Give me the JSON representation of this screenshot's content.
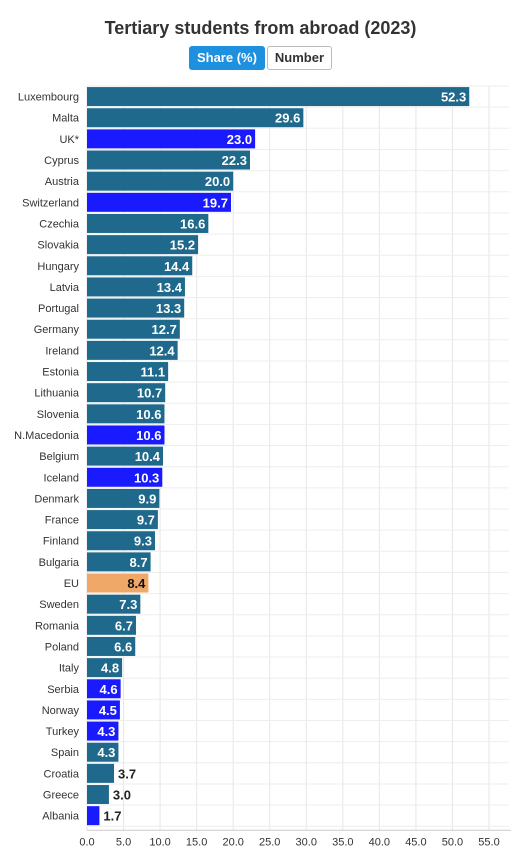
{
  "header": {
    "title": "Tertiary students from abroad (2023)",
    "toggle_share": "Share (%)",
    "toggle_number": "Number"
  },
  "colors": {
    "eu_member": "#1f6a8c",
    "non_eu": "#1a1aff",
    "eu_average": "#f0a868",
    "active_toggle": "#1e90e0"
  },
  "chart_data": {
    "type": "bar",
    "orientation": "horizontal",
    "title": "Tertiary students from abroad (2023)",
    "xlim": [
      0,
      55
    ],
    "xticks": [
      "0.0",
      "5.0",
      "10.0",
      "15.0",
      "20.0",
      "25.0",
      "30.0",
      "35.0",
      "40.0",
      "45.0",
      "50.0",
      "55.0"
    ],
    "grid": true,
    "categories": [
      "Luxembourg",
      "Malta",
      "UK*",
      "Cyprus",
      "Austria",
      "Switzerland",
      "Czechia",
      "Slovakia",
      "Hungary",
      "Latvia",
      "Portugal",
      "Germany",
      "Ireland",
      "Estonia",
      "Lithuania",
      "Slovenia",
      "N.Macedonia",
      "Belgium",
      "Iceland",
      "Denmark",
      "France",
      "Finland",
      "Bulgaria",
      "EU",
      "Sweden",
      "Romania",
      "Poland",
      "Italy",
      "Serbia",
      "Norway",
      "Turkey",
      "Spain",
      "Croatia",
      "Greece",
      "Albania"
    ],
    "values": [
      52.3,
      29.6,
      23.0,
      22.3,
      20.0,
      19.7,
      16.6,
      15.2,
      14.4,
      13.4,
      13.3,
      12.7,
      12.4,
      11.1,
      10.7,
      10.6,
      10.6,
      10.4,
      10.3,
      9.9,
      9.7,
      9.3,
      8.7,
      8.4,
      7.3,
      6.7,
      6.6,
      4.8,
      4.6,
      4.5,
      4.3,
      4.3,
      3.7,
      3.0,
      1.7
    ],
    "labels": [
      "52.3",
      "29.6",
      "23.0",
      "22.3",
      "20.0",
      "19.7",
      "16.6",
      "15.2",
      "14.4",
      "13.4",
      "13.3",
      "12.7",
      "12.4",
      "11.1",
      "10.7",
      "10.6",
      "10.6",
      "10.4",
      "10.3",
      "9.9",
      "9.7",
      "9.3",
      "8.7",
      "8.4",
      "7.3",
      "6.7",
      "6.6",
      "4.8",
      "4.6",
      "4.5",
      "4.3",
      "4.3",
      "3.7",
      "3.0",
      "1.7"
    ],
    "groups": [
      "eu_member",
      "eu_member",
      "non_eu",
      "eu_member",
      "eu_member",
      "non_eu",
      "eu_member",
      "eu_member",
      "eu_member",
      "eu_member",
      "eu_member",
      "eu_member",
      "eu_member",
      "eu_member",
      "eu_member",
      "eu_member",
      "non_eu",
      "eu_member",
      "non_eu",
      "eu_member",
      "eu_member",
      "eu_member",
      "eu_member",
      "eu_average",
      "eu_member",
      "eu_member",
      "eu_member",
      "eu_member",
      "non_eu",
      "non_eu",
      "non_eu",
      "eu_member",
      "eu_member",
      "eu_member",
      "non_eu"
    ]
  }
}
